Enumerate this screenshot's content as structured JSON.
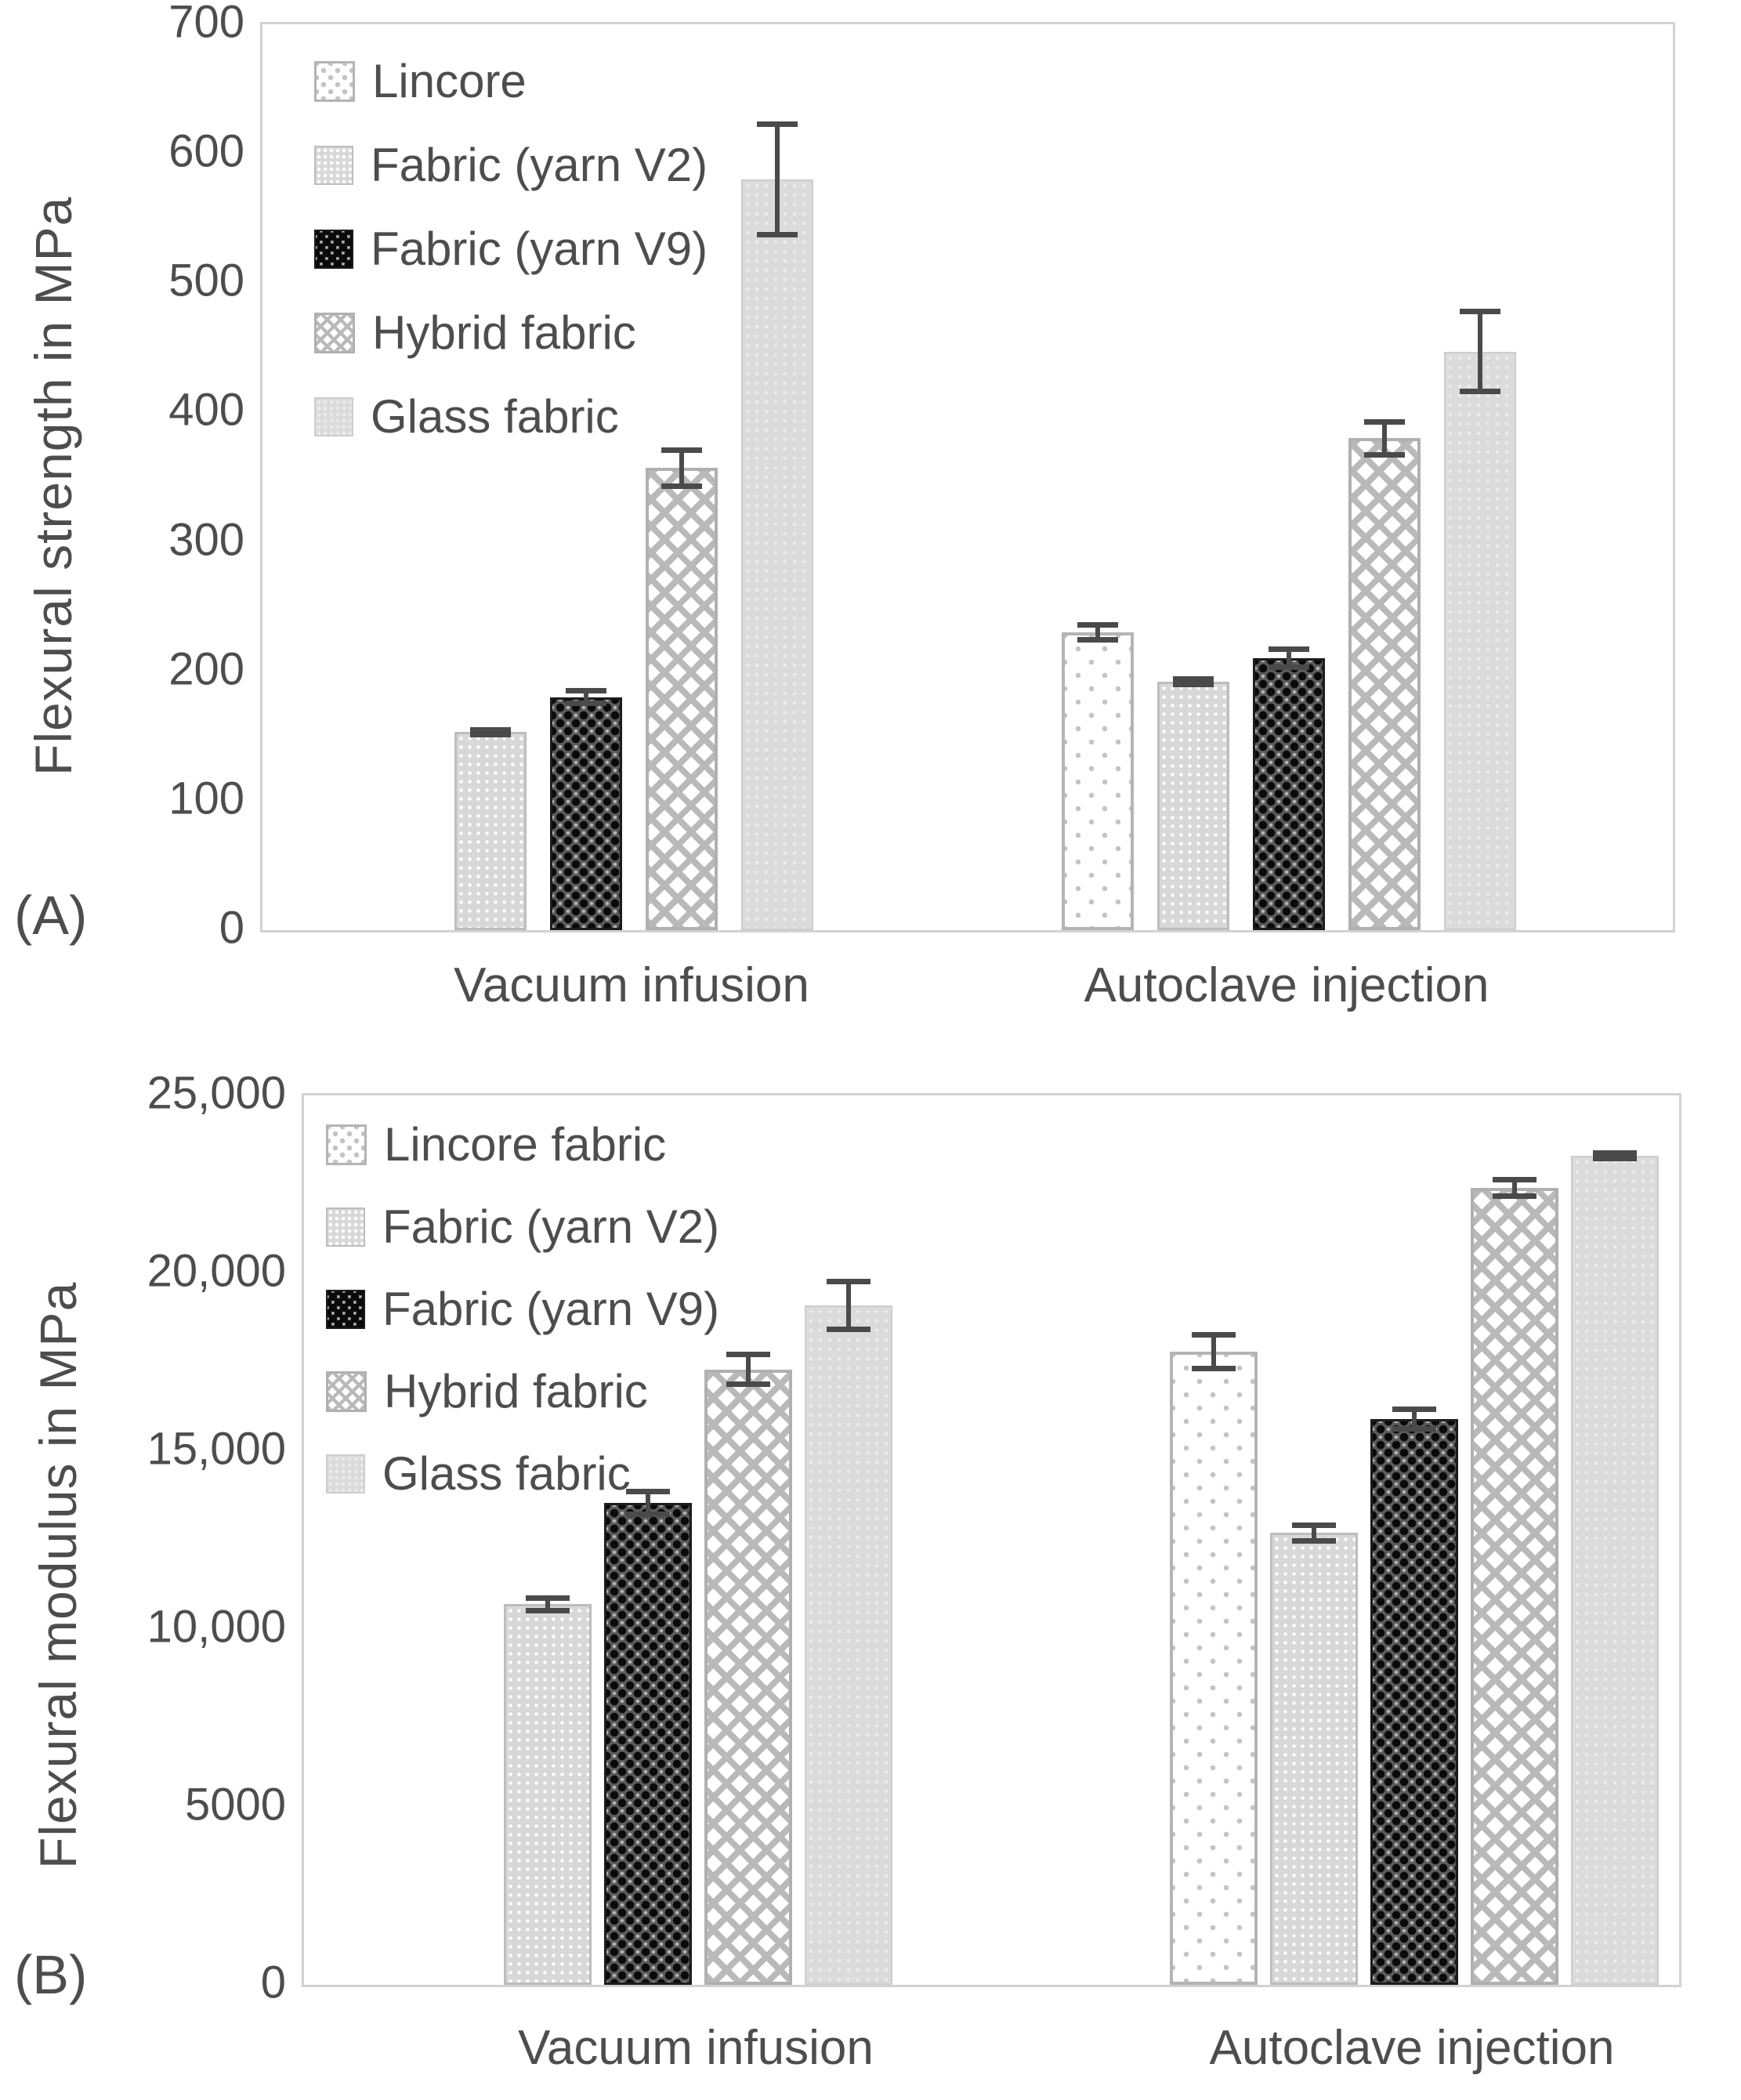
{
  "figure": {
    "background": "#ffffff",
    "text_color": "#4d4d4d",
    "frame_color": "#d2d2d2",
    "error_bar_color": "#4a4a4a"
  },
  "chart_data": [
    {
      "type": "bar",
      "panel_label": "(A)",
      "ylabel": "Flexural strength in MPa",
      "xlabel": "",
      "ylim": [
        0,
        700
      ],
      "yticks": [
        0,
        100,
        200,
        300,
        400,
        500,
        600,
        700
      ],
      "ytick_labels": [
        "0",
        "100",
        "200",
        "300",
        "400",
        "500",
        "600",
        "700"
      ],
      "categories": [
        "Vacuum infusion",
        "Autoclave injection"
      ],
      "grid": false,
      "legend_position": "top-left-inside",
      "series": [
        {
          "name": "Lincore",
          "pattern": "lincore",
          "values": [
            null,
            230
          ],
          "errors": [
            null,
            8
          ]
        },
        {
          "name": "Fabric (yarn V2)",
          "pattern": "v2",
          "values": [
            153,
            192
          ],
          "errors": [
            4,
            4
          ]
        },
        {
          "name": "Fabric (yarn V9)",
          "pattern": "v9",
          "values": [
            180,
            210
          ],
          "errors": [
            7,
            9
          ]
        },
        {
          "name": "Hybrid fabric",
          "pattern": "hybrid",
          "values": [
            357,
            380
          ],
          "errors": [
            16,
            15
          ]
        },
        {
          "name": "Glass fabric",
          "pattern": "glass",
          "values": [
            580,
            447
          ],
          "errors": [
            45,
            33
          ]
        }
      ]
    },
    {
      "type": "bar",
      "panel_label": "(B)",
      "ylabel": "Flexural modulus in MPa",
      "xlabel": "",
      "ylim": [
        0,
        25000
      ],
      "yticks": [
        0,
        5000,
        10000,
        15000,
        20000,
        25000
      ],
      "ytick_labels": [
        "0",
        "5000",
        "10,000",
        "15,000",
        "20,000",
        "25,000"
      ],
      "categories": [
        "Vacuum infusion",
        "Autoclave injection"
      ],
      "grid": false,
      "legend_position": "top-left-inside",
      "series": [
        {
          "name": "Lincore fabric",
          "pattern": "lincore",
          "values": [
            null,
            17800
          ],
          "errors": [
            null,
            550
          ]
        },
        {
          "name": "Fabric (yarn V2)",
          "pattern": "v2",
          "values": [
            10700,
            12700
          ],
          "errors": [
            250,
            300
          ]
        },
        {
          "name": "Fabric (yarn V9)",
          "pattern": "v9",
          "values": [
            13550,
            15900
          ],
          "errors": [
            400,
            350
          ]
        },
        {
          "name": "Hybrid fabric",
          "pattern": "hybrid",
          "values": [
            17300,
            22400
          ],
          "errors": [
            500,
            300
          ]
        },
        {
          "name": "Glass fabric",
          "pattern": "glass",
          "values": [
            19100,
            23300
          ],
          "errors": [
            750,
            150
          ]
        }
      ]
    }
  ]
}
